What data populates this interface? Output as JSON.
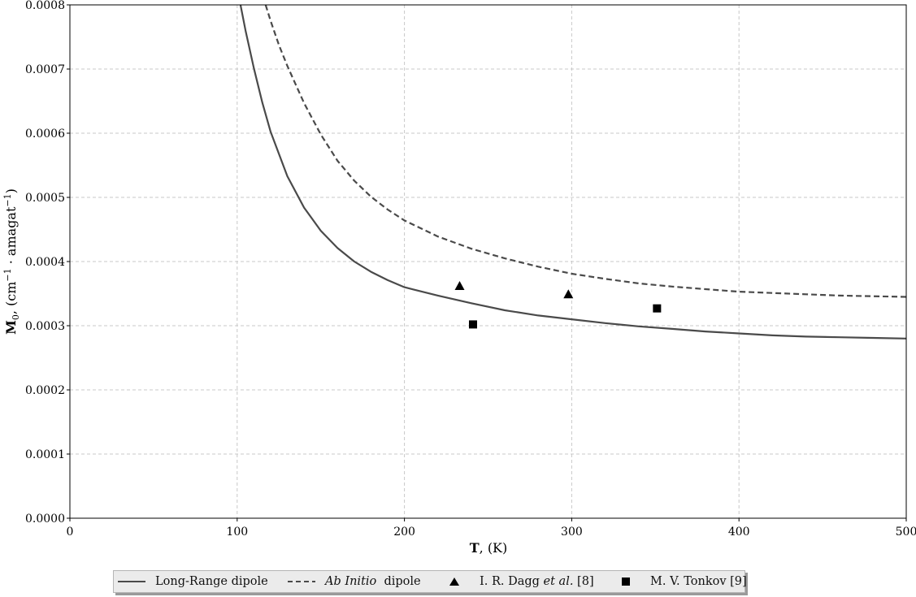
{
  "chart_data": {
    "type": "line",
    "title": "",
    "xlabel": {
      "bold": "T",
      "rest": ", (K)"
    },
    "ylabel": {
      "bold": "M",
      "sub": "0",
      "rest1": ", (cm",
      "sup1": "−1",
      "rest2": " · amagat",
      "sup2": "−1",
      "rest3": ")"
    },
    "xlim": [
      0,
      500
    ],
    "ylim": [
      0,
      0.0008
    ],
    "xticks": [
      0,
      100,
      200,
      300,
      400,
      500
    ],
    "yticks": [
      0,
      0.0001,
      0.0002,
      0.0003,
      0.0004,
      0.0005,
      0.0006,
      0.0007,
      0.0008
    ],
    "xtick_labels": [
      "0",
      "100",
      "200",
      "300",
      "400",
      "500"
    ],
    "ytick_labels": [
      "0.0000",
      "0.0001",
      "0.0002",
      "0.0003",
      "0.0004",
      "0.0005",
      "0.0006",
      "0.0007",
      "0.0008"
    ],
    "grid": true,
    "legend_position": "bottom-center",
    "series": [
      {
        "name": "Long-Range dipole",
        "style": "solid",
        "color": "#4a4a4a",
        "x": [
          102,
          105,
          110,
          115,
          120,
          130,
          140,
          150,
          160,
          170,
          180,
          190,
          200,
          220,
          240,
          260,
          280,
          300,
          320,
          340,
          360,
          380,
          400,
          420,
          440,
          460,
          480,
          500
        ],
        "y": [
          0.0008,
          0.00076,
          0.000701,
          0.000648,
          0.000602,
          0.000533,
          0.000484,
          0.000448,
          0.000421,
          0.0004,
          0.000384,
          0.000371,
          0.00036,
          0.000347,
          0.000335,
          0.000324,
          0.000316,
          0.00031,
          0.000304,
          0.000299,
          0.000295,
          0.000291,
          0.000288,
          0.000285,
          0.000283,
          0.000282,
          0.000281,
          0.00028
        ]
      },
      {
        "name": "Ab Initio dipole",
        "style": "dashed",
        "color": "#4a4a4a",
        "x": [
          117,
          120,
          125,
          130,
          140,
          150,
          160,
          170,
          180,
          190,
          200,
          220,
          240,
          260,
          280,
          300,
          320,
          340,
          360,
          380,
          400,
          420,
          440,
          460,
          480,
          500
        ],
        "y": [
          0.0008,
          0.000775,
          0.000737,
          0.000705,
          0.000647,
          0.000598,
          0.000557,
          0.000526,
          0.000501,
          0.000481,
          0.000464,
          0.000439,
          0.00042,
          0.000405,
          0.000392,
          0.000381,
          0.000373,
          0.000366,
          0.000361,
          0.000357,
          0.000353,
          0.000351,
          0.000349,
          0.000347,
          0.000346,
          0.000345
        ]
      },
      {
        "name": "I. R. Dagg et al. [8]",
        "style": "marker",
        "marker": "triangle",
        "color": "#000000",
        "x": [
          233,
          298
        ],
        "y": [
          0.000362,
          0.000349
        ]
      },
      {
        "name": "M. V. Tonkov [9]",
        "style": "marker",
        "marker": "square",
        "color": "#000000",
        "x": [
          241,
          351
        ],
        "y": [
          0.000302,
          0.000327
        ]
      }
    ]
  },
  "legend": {
    "items": [
      {
        "name": "Long-Range dipole",
        "parts": [
          {
            "text": "Long-Range dipole"
          }
        ]
      },
      {
        "name": "Ab Initio dipole",
        "parts": [
          {
            "text": "Ab Initio",
            "italic": true
          },
          {
            "text": "  dipole"
          }
        ]
      },
      {
        "name": "I. R. Dagg et al. [8]",
        "parts": [
          {
            "text": "I. R. Dagg "
          },
          {
            "text": "et al.",
            "italic": true
          },
          {
            "text": " [8]"
          }
        ]
      },
      {
        "name": "M. V. Tonkov [9]",
        "parts": [
          {
            "text": "M. V. Tonkov [9]"
          }
        ]
      }
    ]
  }
}
